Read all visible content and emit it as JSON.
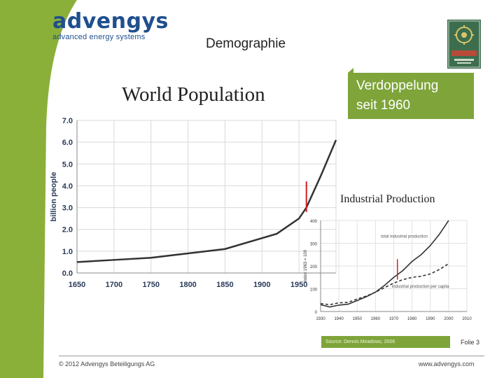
{
  "brand": {
    "name": "advengys",
    "tagline": "advanced energy systems",
    "color": "#1f4f8e",
    "accent": "#7ea43a"
  },
  "slide_title": "Demographie",
  "callout": {
    "line1": "Verdoppelung",
    "line2": "seit 1960"
  },
  "rotary_logo": {
    "icon": "rotary-logo-icon"
  },
  "source": "Source: Dennis Meadows, 2006",
  "slide_number": "Folie 3",
  "footer": {
    "copyright": "© 2012 Advengys Beteiligungs AG",
    "website": "www.advengys.com"
  },
  "chart_data": [
    {
      "type": "line",
      "title": "World Population",
      "ylabel": "billion people",
      "xlabel": "",
      "x": [
        1650,
        1700,
        1750,
        1800,
        1850,
        1900,
        1920,
        1950,
        1960,
        1980,
        2000
      ],
      "series": [
        {
          "values": [
            0.5,
            0.6,
            0.7,
            0.9,
            1.1,
            1.6,
            1.8,
            2.5,
            3.0,
            4.5,
            6.1
          ]
        }
      ],
      "xticks": [
        "1650",
        "1700",
        "1750",
        "1800",
        "1850",
        "1900",
        "1950"
      ],
      "yticks": [
        "0.0",
        "1.0",
        "2.0",
        "3.0",
        "4.0",
        "5.0",
        "6.0",
        "7.0"
      ],
      "xlim": [
        1650,
        2000
      ],
      "ylim": [
        0,
        7
      ],
      "marker_year": 1960,
      "grid": true,
      "line_color": "#333333",
      "marker_color": "#d42020"
    },
    {
      "type": "line",
      "title": "Industrial Production",
      "ylabel": "index 1963 = 100",
      "xlabel": "",
      "x": [
        1930,
        1935,
        1940,
        1945,
        1950,
        1955,
        1960,
        1965,
        1970,
        1975,
        1980,
        1985,
        1990,
        1995,
        2000
      ],
      "series": [
        {
          "name": "total industrial production",
          "style": "solid",
          "values": [
            30,
            20,
            28,
            32,
            48,
            65,
            85,
            115,
            150,
            180,
            220,
            250,
            290,
            340,
            400
          ]
        },
        {
          "name": "industrial production per capita",
          "style": "dashed",
          "values": [
            35,
            30,
            38,
            40,
            55,
            68,
            85,
            105,
            125,
            140,
            150,
            155,
            165,
            185,
            210
          ]
        }
      ],
      "xticks": [
        "1930",
        "1940",
        "1950",
        "1960",
        "1970",
        "1980",
        "1990",
        "2000",
        "2010"
      ],
      "yticks": [
        "0",
        "100",
        "200",
        "300",
        "400"
      ],
      "xlim": [
        1930,
        2010
      ],
      "ylim": [
        0,
        400
      ],
      "marker_year": 1972,
      "grid": true,
      "line_color": "#333333",
      "marker_color": "#d42020"
    }
  ]
}
